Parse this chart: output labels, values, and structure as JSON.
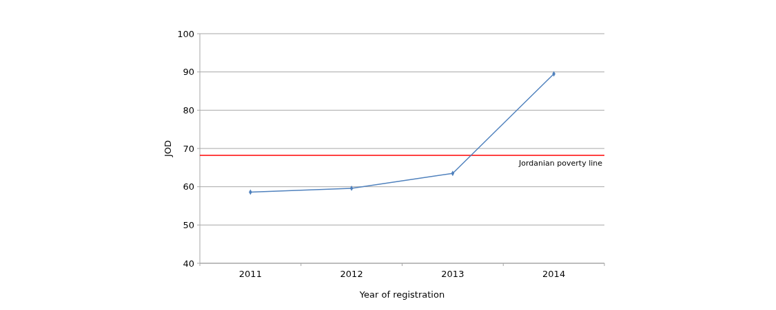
{
  "chart_data": {
    "type": "line",
    "xlabel": "Year of registration",
    "ylabel": "JOD",
    "categories": [
      "2011",
      "2012",
      "2013",
      "2014"
    ],
    "series": [
      {
        "color": "#4f81bd",
        "values": [
          58.6,
          59.6,
          63.5,
          89.5
        ]
      }
    ],
    "ylim": [
      40,
      100
    ],
    "yticks": [
      40,
      50,
      60,
      70,
      80,
      90,
      100
    ],
    "grid": "y",
    "marker": "diamond",
    "line_style": "solid",
    "ref_lines": [
      {
        "axis": "y",
        "value": 68.2,
        "label": "Jordanian poverty line",
        "color": "#ff0000"
      }
    ]
  }
}
